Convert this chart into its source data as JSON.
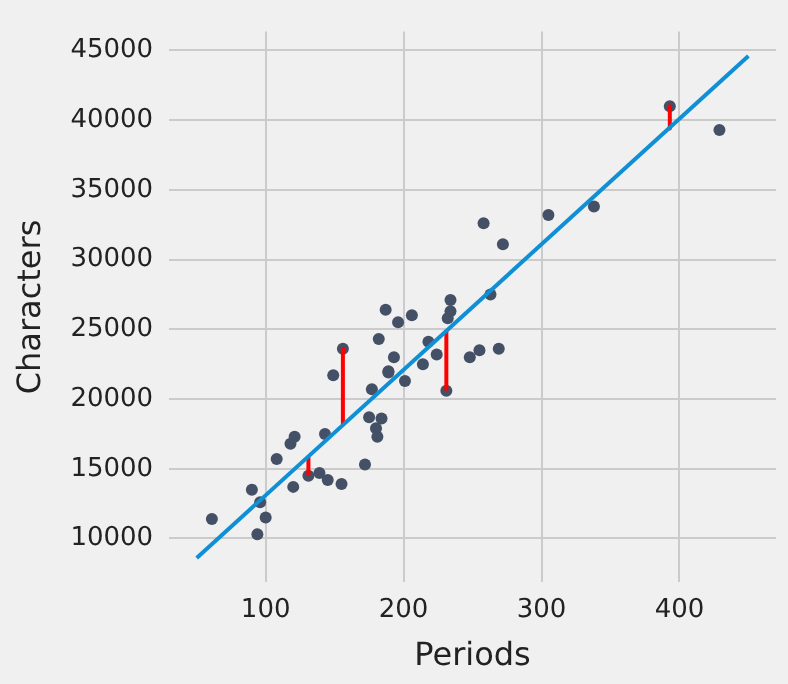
{
  "chart_data": {
    "type": "scatter",
    "xlabel": "Periods",
    "ylabel": "Characters",
    "xlim": [
      30,
      470
    ],
    "ylim": [
      6850,
      46350
    ],
    "xticks": [
      100,
      200,
      300,
      400
    ],
    "yticks": [
      10000,
      15000,
      20000,
      25000,
      30000,
      35000,
      40000,
      45000
    ],
    "grid": true,
    "legend": false,
    "series": [
      {
        "type": "scatter",
        "marker": "circle",
        "color": "#435066",
        "x": [
          61,
          90,
          96,
          94,
          100,
          108,
          118,
          121,
          120,
          131,
          139,
          145,
          143,
          149,
          155,
          156,
          172,
          175,
          177,
          180,
          181,
          182,
          184,
          187,
          189,
          189,
          193,
          196,
          201,
          206,
          214,
          218,
          224,
          231,
          232,
          234,
          234,
          248,
          255,
          258,
          263,
          269,
          272,
          305,
          338,
          393,
          429
        ],
        "values": [
          11400,
          13500,
          12600,
          10300,
          11500,
          15700,
          16800,
          17300,
          13700,
          14500,
          14700,
          14200,
          17500,
          21700,
          13900,
          23600,
          15300,
          18700,
          20700,
          17900,
          17300,
          24300,
          18600,
          26400,
          22000,
          21900,
          23000,
          25500,
          21300,
          26000,
          22500,
          24100,
          23200,
          20600,
          25800,
          26300,
          27100,
          23000,
          23500,
          32600,
          27500,
          23600,
          31100,
          33200,
          33800,
          41000,
          39300
        ]
      },
      {
        "type": "line",
        "marker": "none",
        "color": "#0e8fd6",
        "x": [
          50,
          450
        ],
        "values": [
          8600,
          44600
        ]
      },
      {
        "type": "line",
        "marker": "none",
        "color": "#ff0000",
        "x": [
          131,
          131
        ],
        "values": [
          14500,
          15900
        ]
      },
      {
        "type": "line",
        "marker": "none",
        "color": "#ff0000",
        "x": [
          156,
          156
        ],
        "values": [
          23600,
          18200
        ]
      },
      {
        "type": "line",
        "marker": "none",
        "color": "#ff0000",
        "x": [
          231,
          231
        ],
        "values": [
          20600,
          24900
        ]
      },
      {
        "type": "line",
        "marker": "none",
        "color": "#ff0000",
        "x": [
          393,
          393
        ],
        "values": [
          41000,
          39400
        ]
      }
    ]
  }
}
